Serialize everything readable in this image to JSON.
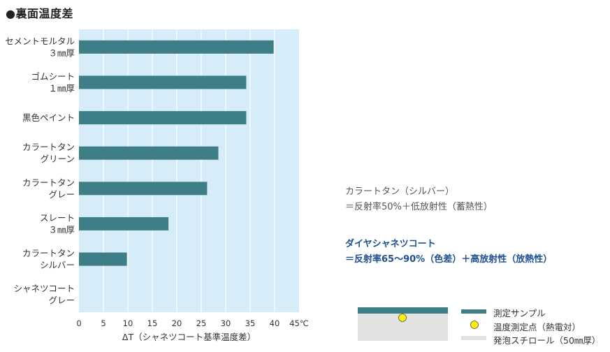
{
  "title": "●裏面温度差",
  "chart_data": {
    "type": "bar",
    "orientation": "horizontal",
    "categories": [
      [
        "セメントモルタル",
        "３㎜厚"
      ],
      [
        "ゴムシート",
        "１㎜厚"
      ],
      [
        "黒色ペイント"
      ],
      [
        "カラートタン",
        "グリーン"
      ],
      [
        "カラートタン",
        "グレー"
      ],
      [
        "スレート",
        "３㎜厚"
      ],
      [
        "カラートタン",
        "シルバー"
      ],
      [
        "シャネツコート",
        "グレー"
      ]
    ],
    "values": [
      39.8,
      34.2,
      34.2,
      28.5,
      26.2,
      18.3,
      9.8,
      0
    ],
    "xlim": [
      0,
      45
    ],
    "xticks": [
      "0",
      "5",
      "10",
      "15",
      "20",
      "25",
      "30",
      "35",
      "40",
      "45℃"
    ],
    "xlabel": "ΔT（シャネツコート基準温度差）",
    "grid": true,
    "colors": {
      "bar": "#3e7f87",
      "plot_bg": "#d6ecf8",
      "grid": "#ffffff"
    }
  },
  "notes": {
    "silver": {
      "line1": "カラートタン（シルバー）",
      "line2": "＝反射率50%＋低放射性（蓄熱性）"
    },
    "coat": {
      "line1": "ダイヤシャネツコート",
      "line2": "＝反射率65～90%（色差）＋高放射性（放熱性）"
    }
  },
  "legend": {
    "sample": "測定サンプル",
    "point": "温度測定点（熱電対）",
    "foam": "発泡スチロール（50㎜厚）",
    "colors": {
      "sample": "#3e7f87",
      "point": "#ffee00",
      "foam": "#e2e2e2"
    }
  }
}
